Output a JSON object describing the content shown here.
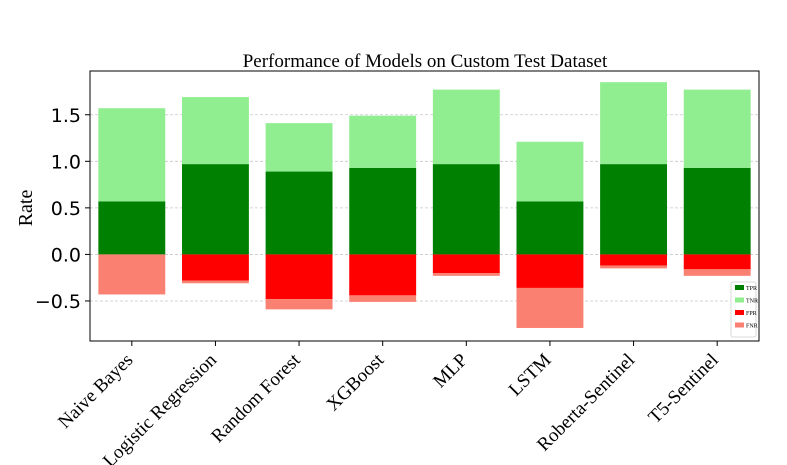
{
  "chart_data": {
    "type": "bar",
    "stacked": true,
    "title": "Performance of Models on Custom Test Dataset",
    "xlabel": "",
    "ylabel": "Rate",
    "ylim": [
      -0.93,
      1.97
    ],
    "yticks": [
      -0.5,
      0.0,
      0.5,
      1.0,
      1.5
    ],
    "ytick_labels": [
      "−0.5",
      "0.0",
      "0.5",
      "1.0",
      "1.5"
    ],
    "grid": "horizontal dashed",
    "legend_position": "lower-right",
    "categories": [
      "Naive Bayes",
      "Logistic Regression",
      "Random Forest",
      "XGBoost",
      "MLP",
      "LSTM",
      "Roberta-Sentinel",
      "T5-Sentinel"
    ],
    "series": [
      {
        "name": "TPR",
        "color": "#008000",
        "values": [
          0.57,
          0.97,
          0.89,
          0.93,
          0.97,
          0.57,
          0.97,
          0.93
        ]
      },
      {
        "name": "TNR",
        "color": "#90ee90",
        "values": [
          1.0,
          0.72,
          0.52,
          0.56,
          0.8,
          0.64,
          0.88,
          0.84
        ]
      },
      {
        "name": "FPR",
        "color": "#ff0000",
        "values": [
          0.0,
          -0.28,
          -0.48,
          -0.44,
          -0.2,
          -0.36,
          -0.12,
          -0.16
        ]
      },
      {
        "name": "FNR",
        "color": "#fa8072",
        "values": [
          -0.43,
          -0.03,
          -0.11,
          -0.07,
          -0.03,
          -0.43,
          -0.03,
          -0.07
        ]
      }
    ]
  }
}
